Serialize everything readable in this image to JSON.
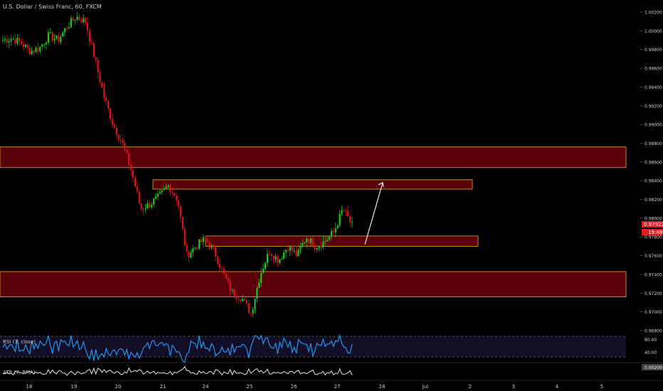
{
  "header": {
    "title": "U.S. Dollar / Swiss Franc, 60, FXCM"
  },
  "colors": {
    "background": "#000000",
    "up_candle": "#22c51e",
    "down_candle": "#d9141c",
    "zone_fill": "#5a0008",
    "zone_stroke": "#d4a017",
    "rsi_line": "#2196f3",
    "rsi_band": "#1a1530",
    "atr_line": "#e6e6e6",
    "price_tag": "#e01e24",
    "arrow": "#e6e6e6",
    "axis_text": "#cfcfcf"
  },
  "price_axis": {
    "ticks": [
      "1.00200",
      "1.00000",
      "0.99800",
      "0.99600",
      "0.99400",
      "0.99200",
      "0.99000",
      "0.98800",
      "0.98600",
      "0.98400",
      "0.98200",
      "0.98000",
      "0.97800",
      "0.97600",
      "0.97400",
      "0.97200",
      "0.97000",
      "0.96800"
    ],
    "last_price": "0.97922",
    "countdown": "19:48"
  },
  "time_axis": {
    "labels": [
      "18",
      "19",
      "20",
      "21",
      "24",
      "25",
      "26",
      "27",
      "28",
      "Jul",
      "2",
      "3",
      "4",
      "5"
    ]
  },
  "rsi_panel": {
    "label": "RSI (7, close)",
    "ticks": [
      "80.00",
      "40.00"
    ]
  },
  "atr_panel": {
    "label": "ATR (7, RMA)",
    "ticks": [
      "0.00200"
    ]
  },
  "chart_data": {
    "type": "candlestick",
    "title": "U.S. Dollar / Swiss Franc, 60, FXCM",
    "ylim": [
      0.9676,
      1.0026
    ],
    "grid": false,
    "zones": [
      {
        "low": 0.9854,
        "high": 0.9876
      },
      {
        "low": 0.9831,
        "high": 0.9841
      },
      {
        "low": 0.977,
        "high": 0.9781
      },
      {
        "low": 0.9716,
        "high": 0.9743
      }
    ],
    "arrow": {
      "from": 0.9772,
      "to": 0.9838
    },
    "path": [
      [
        0.999,
        "18"
      ],
      [
        0.9992,
        "18"
      ],
      [
        0.9987,
        "18"
      ],
      [
        0.9978,
        "18"
      ],
      [
        0.9982,
        "18"
      ],
      [
        0.9995,
        "19"
      ],
      [
        0.999,
        "19"
      ],
      [
        1.0005,
        "19"
      ],
      [
        1.0015,
        "19"
      ],
      [
        1.001,
        "19"
      ],
      [
        0.997,
        "20"
      ],
      [
        0.993,
        "20"
      ],
      [
        0.99,
        "20"
      ],
      [
        0.988,
        "20"
      ],
      [
        0.985,
        "20"
      ],
      [
        0.981,
        "21"
      ],
      [
        0.9815,
        "21"
      ],
      [
        0.9823,
        "21"
      ],
      [
        0.9835,
        "21"
      ],
      [
        0.982,
        "21"
      ],
      [
        0.976,
        "24"
      ],
      [
        0.977,
        "24"
      ],
      [
        0.9778,
        "24"
      ],
      [
        0.9765,
        "24"
      ],
      [
        0.974,
        "24"
      ],
      [
        0.972,
        "25"
      ],
      [
        0.9715,
        "25"
      ],
      [
        0.9698,
        "25"
      ],
      [
        0.974,
        "25"
      ],
      [
        0.9765,
        "25"
      ],
      [
        0.9755,
        "26"
      ],
      [
        0.977,
        "26"
      ],
      [
        0.976,
        "26"
      ],
      [
        0.978,
        "26"
      ],
      [
        0.977,
        "26"
      ],
      [
        0.9775,
        "27"
      ],
      [
        0.9785,
        "27"
      ],
      [
        0.981,
        "27"
      ],
      [
        0.9792,
        "27"
      ]
    ]
  }
}
